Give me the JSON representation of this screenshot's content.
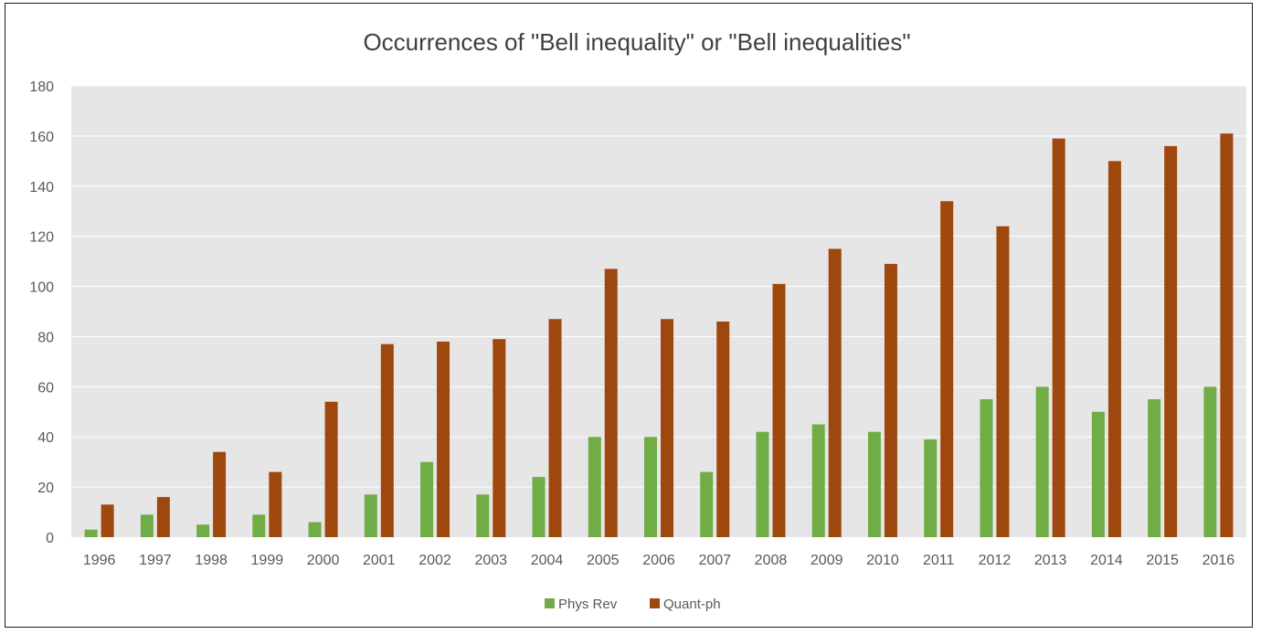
{
  "chart_data": {
    "type": "bar",
    "title": "Occurrences of \"Bell inequality\" or \"Bell inequalities\"",
    "xlabel": "",
    "ylabel": "",
    "ylim": [
      0,
      180
    ],
    "yticks": [
      0,
      20,
      40,
      60,
      80,
      100,
      120,
      140,
      160,
      180
    ],
    "grid": true,
    "legend_position": "bottom",
    "categories": [
      "1996",
      "1997",
      "1998",
      "1999",
      "2000",
      "2001",
      "2002",
      "2003",
      "2004",
      "2005",
      "2006",
      "2007",
      "2008",
      "2009",
      "2010",
      "2011",
      "2012",
      "2013",
      "2014",
      "2015",
      "2016"
    ],
    "series": [
      {
        "name": "Phys Rev",
        "color": "#70ad47",
        "values": [
          3,
          9,
          5,
          9,
          6,
          17,
          30,
          17,
          24,
          40,
          40,
          26,
          42,
          45,
          42,
          39,
          55,
          60,
          50,
          55,
          60
        ]
      },
      {
        "name": "Quant-ph",
        "color": "#9e480e",
        "values": [
          13,
          16,
          34,
          26,
          54,
          77,
          78,
          79,
          87,
          107,
          87,
          86,
          101,
          115,
          109,
          134,
          124,
          159,
          150,
          156,
          161
        ]
      }
    ],
    "colors": {
      "plot_background": "#e7e6e6",
      "gridline": "#ffffff",
      "text": "#595959",
      "title": "#404040"
    }
  }
}
